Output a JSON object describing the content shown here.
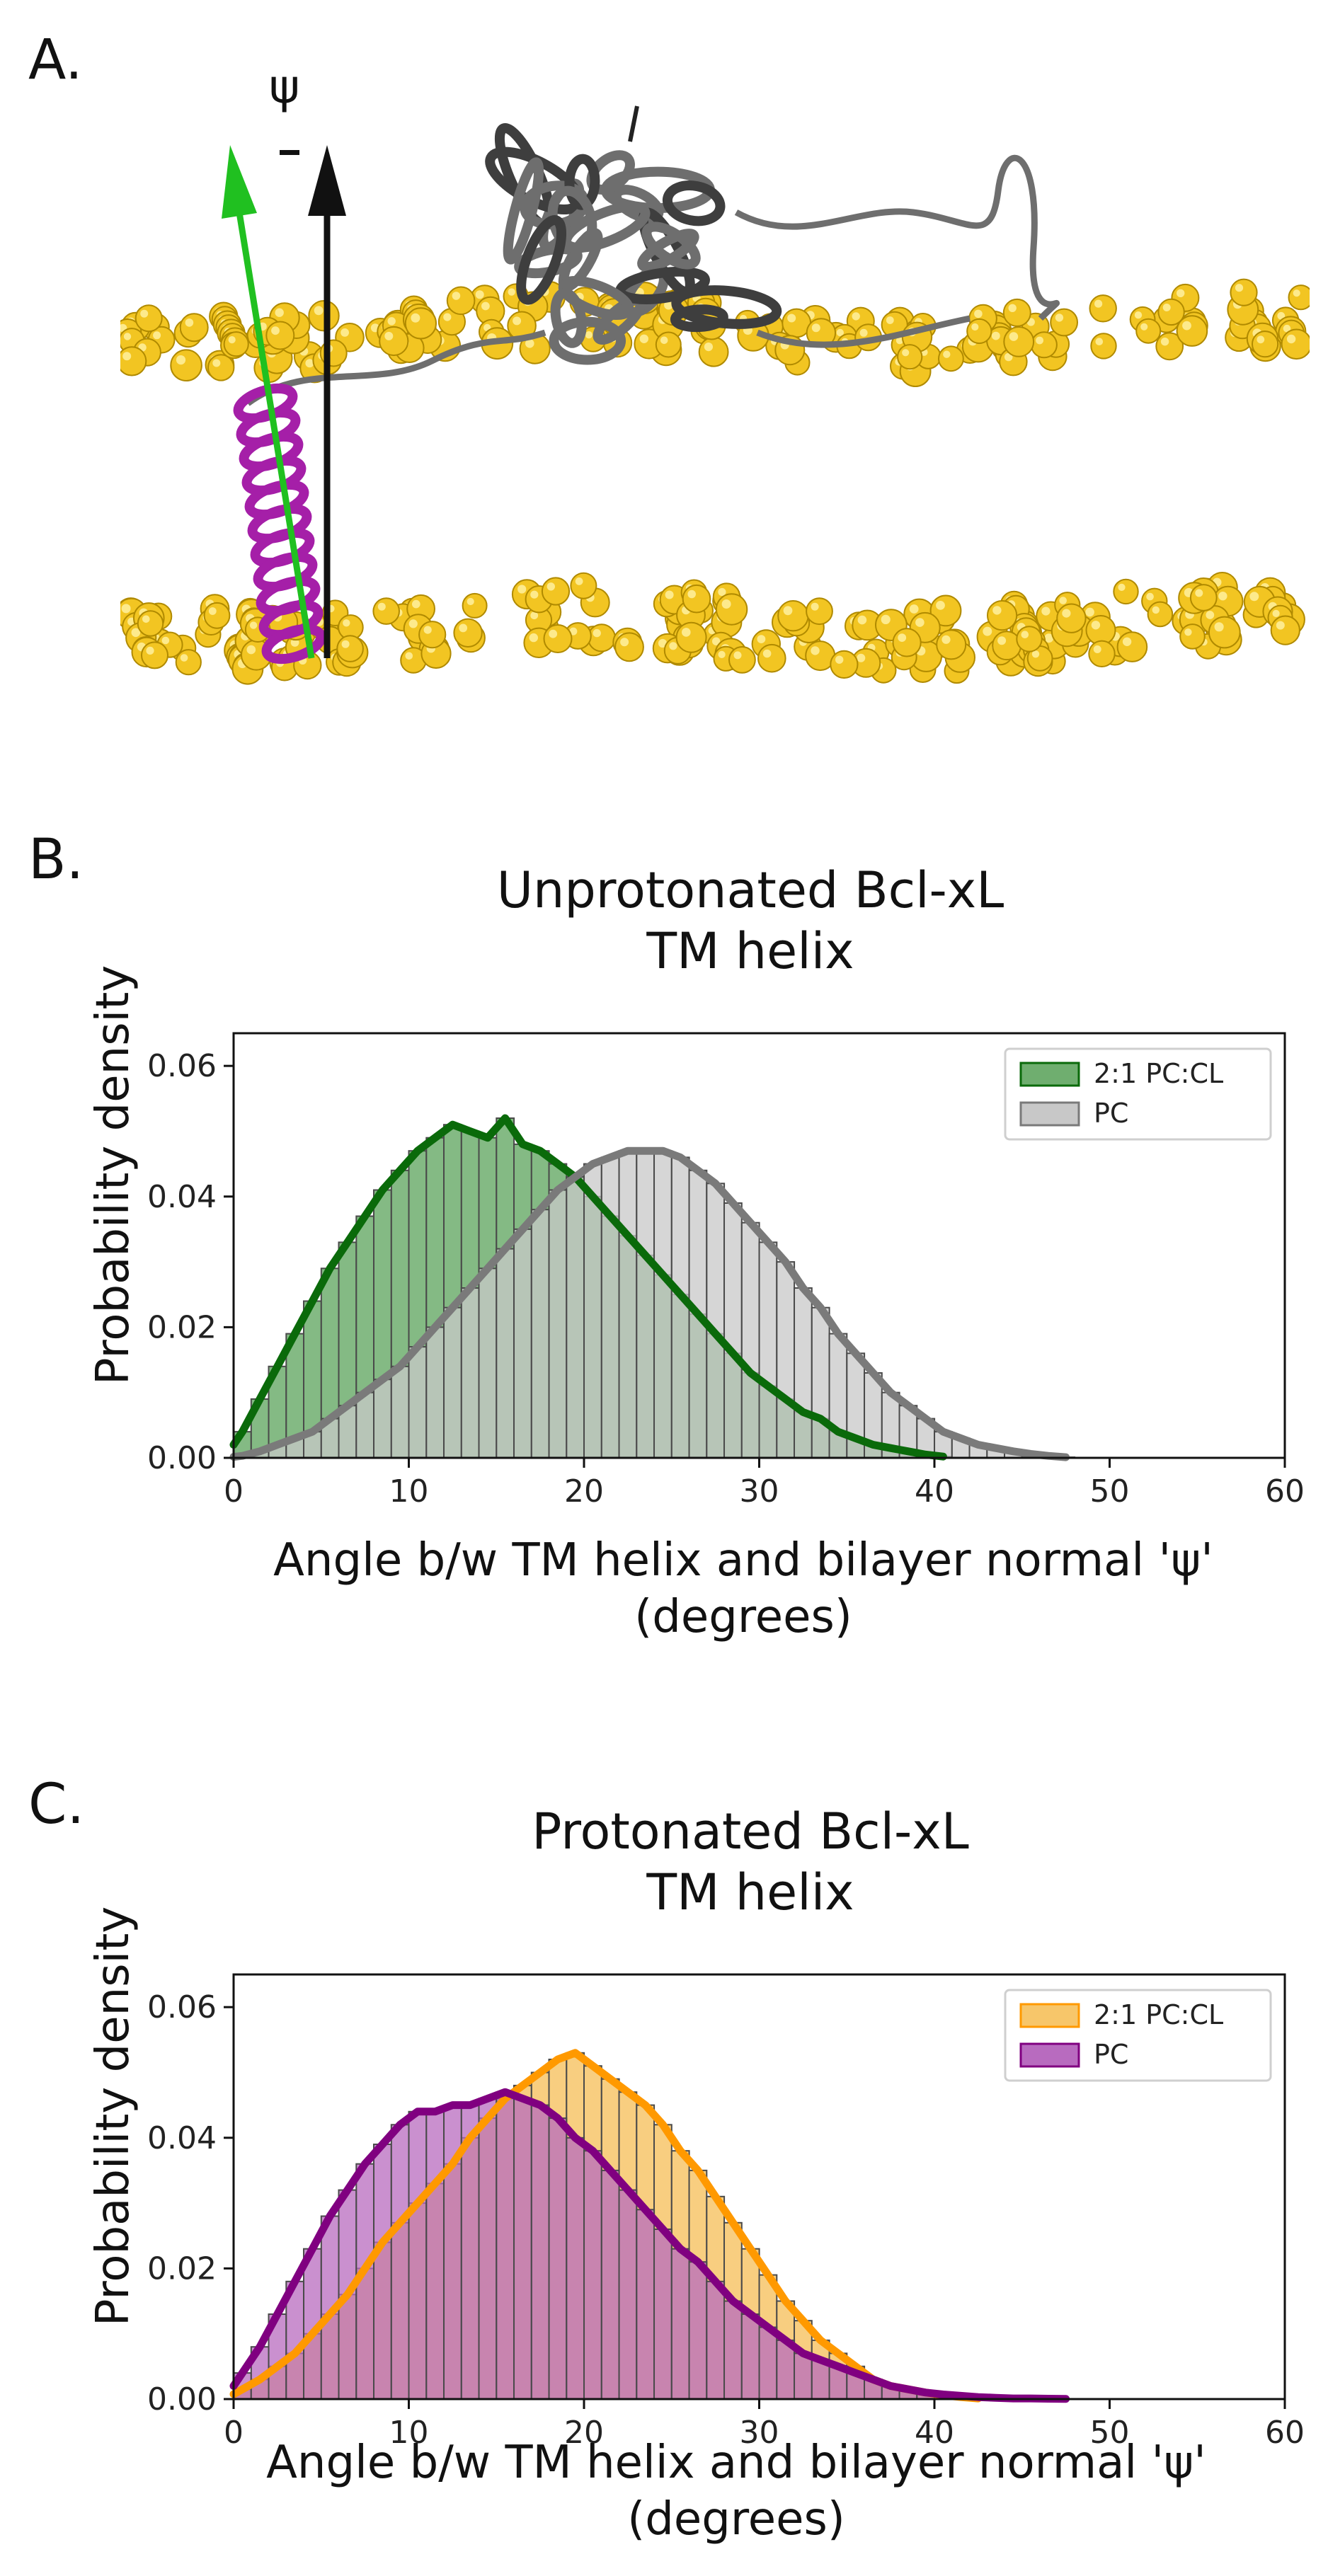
{
  "panelA": {
    "letter": "A.",
    "psi_symbol": "ψ",
    "colors": {
      "lipid": "#f2c522",
      "protein": "#6e6e6e",
      "helix": "#a51fa8",
      "arrow_green": "#20c020",
      "arrow_black": "#111111"
    }
  },
  "panelB": {
    "letter": "B.",
    "title_line1": "Unprotonated Bcl-xL",
    "title_line2": "TM helix",
    "ylabel": "Probability density",
    "xlabel_line1": "Angle b/w TM helix and bilayer normal 'ψ'",
    "xlabel_line2": "(degrees)"
  },
  "panelC": {
    "letter": "C.",
    "title_line1": "Protonated Bcl-xL",
    "title_line2": "TM helix",
    "ylabel": "Probability density",
    "xlabel_line1": "Angle b/w TM helix and bilayer normal 'ψ'",
    "xlabel_line2": "(degrees)"
  },
  "chart_data": [
    {
      "type": "bar",
      "title": "Unprotonated Bcl-xL TM helix",
      "xlabel": "Angle b/w TM helix and bilayer normal 'ψ' (degrees)",
      "ylabel": "Probability density",
      "xlim": [
        0,
        60
      ],
      "ylim": [
        0,
        0.065
      ],
      "xticks": [
        "0",
        "10",
        "20",
        "30",
        "40",
        "50",
        "60"
      ],
      "yticks": [
        "0.00",
        "0.02",
        "0.04",
        "0.06"
      ],
      "legend_position": "top-right",
      "bin_width": 1,
      "series": [
        {
          "name": "2:1 PC:CL",
          "fill": "#6fae6f",
          "line": "#0a6a0a",
          "x": [
            0.5,
            1.5,
            2.5,
            3.5,
            4.5,
            5.5,
            6.5,
            7.5,
            8.5,
            9.5,
            10.5,
            11.5,
            12.5,
            13.5,
            14.5,
            15.5,
            16.5,
            17.5,
            18.5,
            19.5,
            20.5,
            21.5,
            22.5,
            23.5,
            24.5,
            25.5,
            26.5,
            27.5,
            28.5,
            29.5,
            30.5,
            31.5,
            32.5,
            33.5,
            34.5,
            35.5,
            36.5,
            37.5,
            38.5,
            39.5,
            40.5
          ],
          "values": [
            0.004,
            0.009,
            0.014,
            0.019,
            0.024,
            0.029,
            0.033,
            0.037,
            0.041,
            0.044,
            0.047,
            0.049,
            0.051,
            0.05,
            0.049,
            0.052,
            0.048,
            0.047,
            0.045,
            0.043,
            0.04,
            0.037,
            0.034,
            0.031,
            0.028,
            0.025,
            0.022,
            0.019,
            0.016,
            0.013,
            0.011,
            0.009,
            0.007,
            0.006,
            0.004,
            0.003,
            0.002,
            0.0015,
            0.001,
            0.0005,
            0.0002
          ]
        },
        {
          "name": "PC",
          "fill": "#c8c8c8",
          "line": "#7a7a7a",
          "x": [
            0.5,
            1.5,
            2.5,
            3.5,
            4.5,
            5.5,
            6.5,
            7.5,
            8.5,
            9.5,
            10.5,
            11.5,
            12.5,
            13.5,
            14.5,
            15.5,
            16.5,
            17.5,
            18.5,
            19.5,
            20.5,
            21.5,
            22.5,
            23.5,
            24.5,
            25.5,
            26.5,
            27.5,
            28.5,
            29.5,
            30.5,
            31.5,
            32.5,
            33.5,
            34.5,
            35.5,
            36.5,
            37.5,
            38.5,
            39.5,
            40.5,
            41.5,
            42.5,
            43.5,
            44.5,
            45.5,
            46.5,
            47.5
          ],
          "values": [
            0.0003,
            0.001,
            0.002,
            0.003,
            0.004,
            0.006,
            0.008,
            0.01,
            0.012,
            0.014,
            0.017,
            0.02,
            0.023,
            0.026,
            0.029,
            0.032,
            0.035,
            0.038,
            0.041,
            0.043,
            0.045,
            0.046,
            0.047,
            0.047,
            0.047,
            0.046,
            0.044,
            0.042,
            0.039,
            0.036,
            0.033,
            0.03,
            0.026,
            0.023,
            0.019,
            0.016,
            0.013,
            0.01,
            0.008,
            0.006,
            0.004,
            0.003,
            0.002,
            0.0015,
            0.001,
            0.0006,
            0.0003,
            0.0001
          ]
        }
      ]
    },
    {
      "type": "bar",
      "title": "Protonated Bcl-xL TM helix",
      "xlabel": "Angle b/w TM helix and bilayer normal 'ψ' (degrees)",
      "ylabel": "Probability density",
      "xlim": [
        0,
        60
      ],
      "ylim": [
        0,
        0.065
      ],
      "xticks": [
        "0",
        "10",
        "20",
        "30",
        "40",
        "50",
        "60"
      ],
      "yticks": [
        "0.00",
        "0.02",
        "0.04",
        "0.06"
      ],
      "legend_position": "top-right",
      "bin_width": 1,
      "series": [
        {
          "name": "2:1 PC:CL",
          "fill": "#f7c66a",
          "line": "#ff9900",
          "x": [
            0.5,
            1.5,
            2.5,
            3.5,
            4.5,
            5.5,
            6.5,
            7.5,
            8.5,
            9.5,
            10.5,
            11.5,
            12.5,
            13.5,
            14.5,
            15.5,
            16.5,
            17.5,
            18.5,
            19.5,
            20.5,
            21.5,
            22.5,
            23.5,
            24.5,
            25.5,
            26.5,
            27.5,
            28.5,
            29.5,
            30.5,
            31.5,
            32.5,
            33.5,
            34.5,
            35.5,
            36.5,
            37.5,
            38.5,
            39.5,
            40.5,
            41.5,
            42.5
          ],
          "values": [
            0.0015,
            0.003,
            0.005,
            0.007,
            0.01,
            0.013,
            0.016,
            0.02,
            0.024,
            0.027,
            0.03,
            0.033,
            0.036,
            0.04,
            0.043,
            0.046,
            0.048,
            0.05,
            0.052,
            0.053,
            0.051,
            0.049,
            0.047,
            0.045,
            0.042,
            0.038,
            0.035,
            0.031,
            0.027,
            0.023,
            0.019,
            0.015,
            0.012,
            0.009,
            0.007,
            0.005,
            0.003,
            0.002,
            0.0015,
            0.001,
            0.0006,
            0.0003,
            0.0001
          ]
        },
        {
          "name": "PC",
          "fill": "#b86bbf",
          "line": "#800080",
          "x": [
            0.5,
            1.5,
            2.5,
            3.5,
            4.5,
            5.5,
            6.5,
            7.5,
            8.5,
            9.5,
            10.5,
            11.5,
            12.5,
            13.5,
            14.5,
            15.5,
            16.5,
            17.5,
            18.5,
            19.5,
            20.5,
            21.5,
            22.5,
            23.5,
            24.5,
            25.5,
            26.5,
            27.5,
            28.5,
            29.5,
            30.5,
            31.5,
            32.5,
            33.5,
            34.5,
            35.5,
            36.5,
            37.5,
            38.5,
            39.5,
            40.5,
            41.5,
            42.5,
            43.5,
            44.5,
            45.5,
            46.5,
            47.5
          ],
          "values": [
            0.004,
            0.008,
            0.013,
            0.018,
            0.023,
            0.028,
            0.032,
            0.036,
            0.039,
            0.042,
            0.044,
            0.044,
            0.045,
            0.045,
            0.046,
            0.047,
            0.046,
            0.045,
            0.043,
            0.04,
            0.038,
            0.035,
            0.032,
            0.029,
            0.026,
            0.023,
            0.021,
            0.018,
            0.015,
            0.013,
            0.011,
            0.009,
            0.007,
            0.006,
            0.005,
            0.004,
            0.003,
            0.002,
            0.0015,
            0.001,
            0.0007,
            0.0005,
            0.0003,
            0.0002,
            0.0001,
            0.0001,
            5e-05,
            3e-05
          ]
        }
      ]
    }
  ]
}
